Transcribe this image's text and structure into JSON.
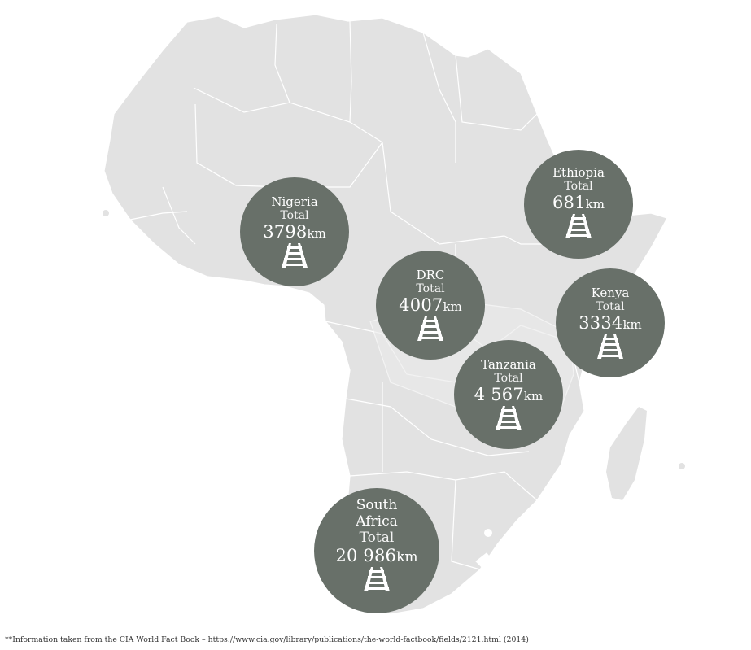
{
  "map": {
    "land_color": "#e2e2e2",
    "border_color": "#ffffff",
    "bubble_color": "#687069",
    "text_color": "#ffffff"
  },
  "countries": [
    {
      "id": "nigeria",
      "name": "Nigeria",
      "total_label": "Total",
      "value": "3798",
      "unit": "km",
      "icon": "railway-tracks-icon"
    },
    {
      "id": "ethiopia",
      "name": "Ethiopia",
      "total_label": "Total",
      "value": "681",
      "unit": "km",
      "icon": "railway-tracks-icon"
    },
    {
      "id": "drc",
      "name": "DRC",
      "total_label": "Total",
      "value": "4007",
      "unit": "km",
      "icon": "railway-tracks-icon"
    },
    {
      "id": "kenya",
      "name": "Kenya",
      "total_label": "Total",
      "value": "3334",
      "unit": "km",
      "icon": "railway-tracks-icon"
    },
    {
      "id": "tanzania",
      "name": "Tanzania",
      "total_label": "Total",
      "value": "4 567",
      "unit": "km",
      "icon": "railway-tracks-icon"
    },
    {
      "id": "south_africa",
      "name_line1": "South",
      "name_line2": "Africa",
      "total_label": "Total",
      "value": "20 986",
      "unit": "km",
      "icon": "railway-tracks-icon"
    }
  ],
  "footnote": "**Information taken from the CIA World Fact Book – https://www.cia.gov/library/publications/the-world-factbook/fields/2121.html (2014)"
}
